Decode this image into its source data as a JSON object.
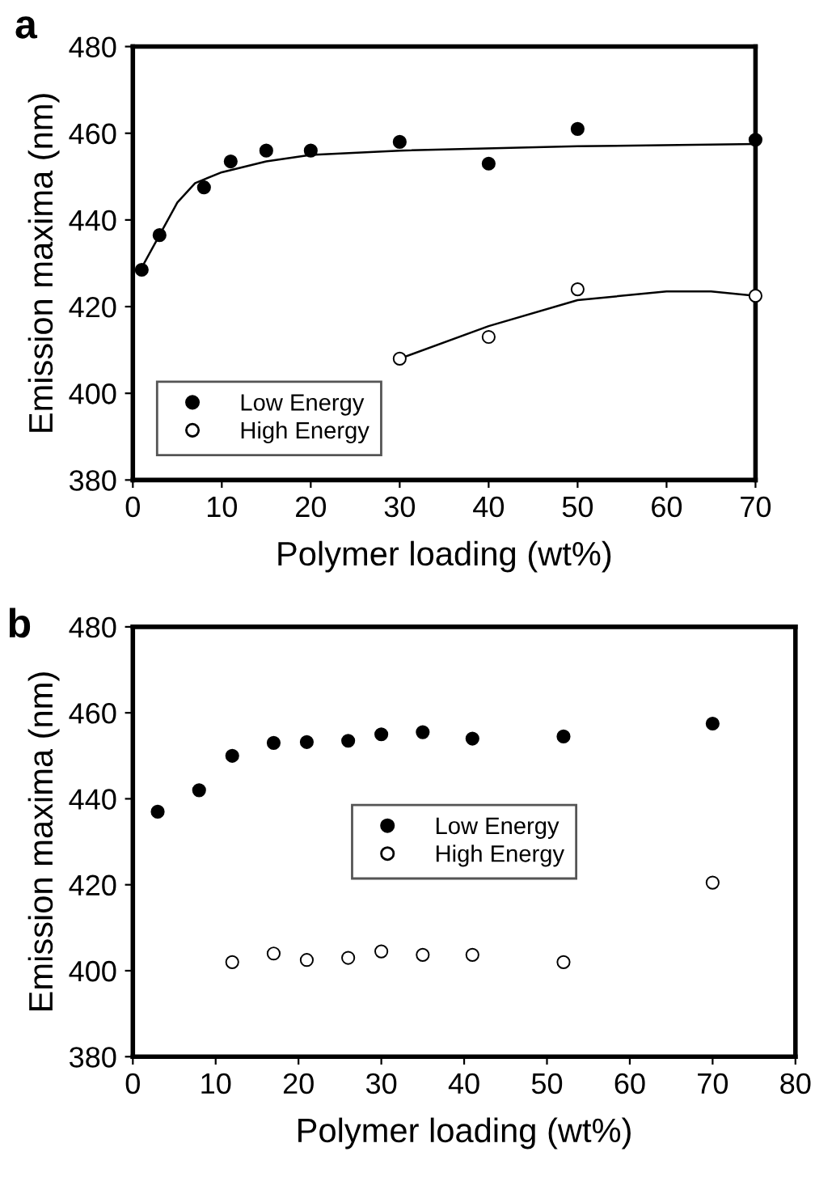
{
  "chart_data": [
    {
      "type": "scatter",
      "title": "a",
      "xlabel": "Polymer loading (wt%)",
      "ylabel": "Emission maxima (nm)",
      "xlim": [
        0,
        70
      ],
      "xticks": [
        0,
        10,
        20,
        30,
        40,
        50,
        60,
        70
      ],
      "ylim": [
        380,
        480
      ],
      "yticks": [
        380,
        400,
        420,
        440,
        460,
        480
      ],
      "grid": false,
      "legend": "bottom left",
      "series": [
        {
          "name": "Low Energy",
          "color": "#000000",
          "marker": "circle",
          "x": [
            1,
            3,
            8,
            11,
            15,
            20,
            30,
            40,
            50,
            70
          ],
          "values": [
            428.5,
            436.5,
            447.5,
            453.5,
            456,
            456,
            458,
            453,
            461,
            458.5
          ]
        },
        {
          "name": "High Energy",
          "color": "#ffffff",
          "marker": "circle",
          "x": [
            30,
            40,
            50,
            70
          ],
          "values": [
            408,
            413,
            424,
            422.5
          ]
        },
        {
          "type": "line",
          "color": "#000000",
          "marker": "none",
          "x": [
            1,
            3,
            5,
            7,
            10,
            15,
            20,
            30,
            50,
            70
          ],
          "values": [
            429,
            436.5,
            444,
            448.5,
            451,
            453.5,
            455,
            456,
            457,
            457.5
          ]
        },
        {
          "type": "line",
          "color": "#000000",
          "marker": "none",
          "x": [
            30,
            40,
            50,
            60,
            65,
            70
          ],
          "values": [
            408,
            415.5,
            421.5,
            423.5,
            423.5,
            422.5
          ]
        }
      ]
    },
    {
      "type": "scatter",
      "title": "b",
      "xlabel": "Polymer loading (wt%)",
      "ylabel": "Emission maxima (nm)",
      "xlim": [
        0,
        80
      ],
      "xticks": [
        0,
        10,
        20,
        30,
        40,
        50,
        60,
        70,
        80
      ],
      "ylim": [
        380,
        480
      ],
      "yticks": [
        380,
        400,
        420,
        440,
        460,
        480
      ],
      "grid": false,
      "legend": "center",
      "series": [
        {
          "name": "Low Energy",
          "color": "#000000",
          "marker": "circle",
          "x": [
            3,
            8,
            12,
            17,
            21,
            26,
            30,
            35,
            41,
            52,
            70
          ],
          "values": [
            437,
            442,
            450,
            453,
            453.2,
            453.5,
            455,
            455.5,
            454,
            454.5,
            457.5
          ]
        },
        {
          "name": "High Energy",
          "color": "#ffffff",
          "marker": "circle",
          "x": [
            12,
            17,
            21,
            26,
            30,
            35,
            41,
            52,
            70
          ],
          "values": [
            402,
            404,
            402.5,
            403,
            404.5,
            403.7,
            403.7,
            402,
            420.5
          ]
        }
      ]
    }
  ]
}
